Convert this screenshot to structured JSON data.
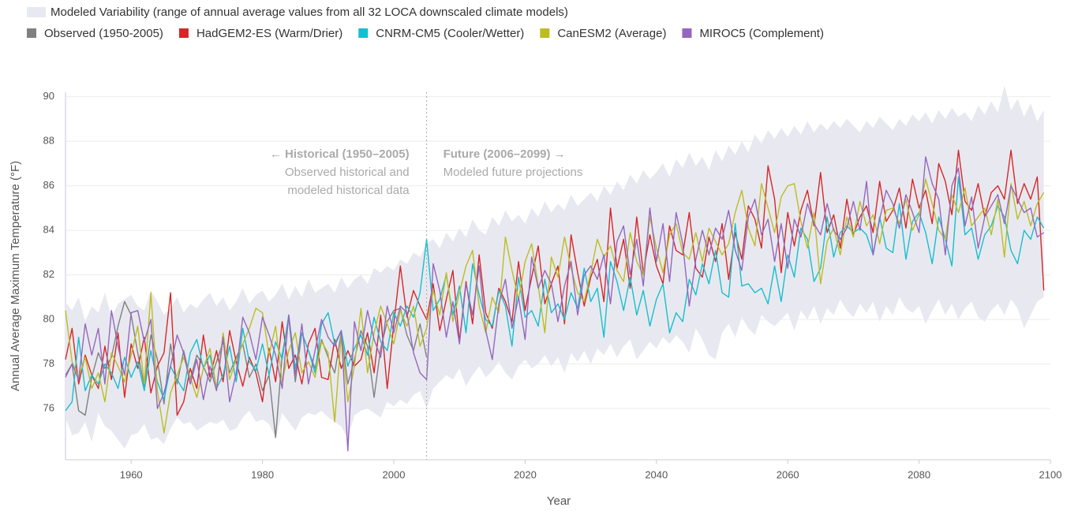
{
  "chart_data": {
    "type": "line",
    "band": {
      "name": "Modeled Variability (range of annual average values from all 32 LOCA downscaled climate models)",
      "color": "#e8e9f0",
      "low": [
        75.6,
        74.8,
        74.9,
        75.4,
        74.5,
        75.8,
        75.2,
        75.0,
        74.6,
        74.2,
        74.8,
        74.9,
        75.3,
        74.6,
        74.7,
        74.4,
        75.1,
        75.6,
        75.3,
        75.4,
        75.0,
        75.2,
        75.4,
        75.3,
        75.5,
        75.0,
        75.1,
        75.6,
        75.9,
        75.4,
        75.5,
        75.3,
        74.7,
        75.8,
        75.4,
        75.0,
        75.6,
        75.8,
        75.7,
        75.9,
        75.6,
        75.4,
        75.2,
        74.6,
        75.7,
        75.9,
        76.0,
        75.8,
        75.6,
        76.3,
        76.1,
        76.4,
        76.2,
        76.6,
        76.8,
        76.0,
        76.9,
        77.2,
        77.5,
        77.3,
        77.8,
        77.0,
        77.5,
        77.9,
        77.4,
        77.7,
        78.1,
        77.6,
        77.3,
        77.9,
        78.2,
        77.8,
        78.0,
        78.4,
        77.9,
        78.3,
        77.6,
        78.5,
        78.1,
        78.6,
        78.0,
        78.7,
        78.4,
        78.9,
        78.3,
        78.8,
        79.1,
        78.2,
        78.6,
        79.0,
        78.7,
        79.2,
        78.9,
        79.3,
        79.0,
        78.5,
        79.6,
        79.1,
        78.4,
        78.2,
        79.4,
        79.8,
        79.2,
        80.1,
        79.6,
        79.3,
        80.2,
        79.9,
        79.7,
        80.0,
        80.3,
        79.5,
        80.4,
        80.0,
        80.6,
        79.8,
        80.5,
        80.2,
        80.9,
        80.4,
        80.1,
        80.7,
        80.3,
        80.8,
        79.9,
        80.6,
        80.2,
        81.0,
        80.5,
        80.3,
        80.6,
        79.8,
        80.4,
        80.9,
        80.2,
        80.7,
        80.0,
        80.5,
        80.8,
        80.1,
        79.9,
        80.4,
        80.7,
        80.2,
        80.9,
        80.5,
        79.6,
        80.2,
        80.8,
        81.0
      ],
      "high": [
        80.8,
        80.4,
        81.0,
        79.9,
        80.6,
        80.3,
        81.2,
        80.1,
        80.7,
        80.9,
        81.1,
        80.6,
        80.4,
        81.3,
        80.8,
        80.2,
        80.5,
        81.0,
        80.3,
        80.7,
        80.5,
        80.9,
        81.2,
        80.6,
        81.0,
        80.4,
        80.8,
        81.4,
        80.7,
        81.1,
        81.3,
        80.8,
        81.1,
        81.6,
        80.9,
        81.5,
        81.0,
        81.8,
        81.2,
        81.4,
        81.6,
        81.2,
        81.9,
        81.4,
        81.8,
        82.0,
        81.6,
        82.3,
        82.1,
        82.4,
        82.2,
        82.7,
        82.5,
        83.0,
        82.8,
        83.4,
        83.6,
        83.2,
        83.9,
        83.5,
        84.1,
        83.7,
        84.5,
        84.0,
        83.8,
        84.6,
        84.2,
        84.9,
        84.4,
        84.7,
        84.3,
        85.0,
        84.6,
        85.3,
        84.8,
        85.2,
        84.9,
        85.6,
        85.1,
        85.4,
        85.7,
        85.3,
        86.0,
        85.6,
        86.2,
        85.8,
        86.5,
        86.1,
        86.7,
        86.3,
        86.6,
        87.0,
        86.4,
        87.2,
        86.8,
        87.5,
        86.9,
        87.3,
        86.7,
        87.6,
        87.1,
        87.8,
        87.4,
        88.0,
        87.5,
        88.3,
        87.9,
        88.5,
        88.1,
        88.6,
        88.2,
        88.7,
        88.3,
        88.9,
        88.4,
        88.8,
        88.5,
        88.9,
        88.6,
        89.0,
        88.7,
        88.4,
        88.9,
        88.6,
        89.1,
        88.8,
        88.5,
        89.0,
        88.7,
        89.2,
        88.9,
        89.3,
        88.8,
        89.4,
        89.0,
        89.5,
        89.1,
        89.3,
        88.9,
        89.6,
        89.2,
        89.8,
        89.3,
        90.5,
        89.4,
        89.9,
        89.1,
        89.7,
        88.9,
        89.4
      ]
    },
    "annotations": {
      "historical": [
        "← Historical (1950–2005)",
        "Observed historical and",
        "modeled historical data"
      ],
      "future": [
        "Future (2006–2099) →",
        "Modeled future projections"
      ],
      "divider": 2005
    },
    "x": [
      1950,
      1951,
      1952,
      1953,
      1954,
      1955,
      1956,
      1957,
      1958,
      1959,
      1960,
      1961,
      1962,
      1963,
      1964,
      1965,
      1966,
      1967,
      1968,
      1969,
      1970,
      1971,
      1972,
      1973,
      1974,
      1975,
      1976,
      1977,
      1978,
      1979,
      1980,
      1981,
      1982,
      1983,
      1984,
      1985,
      1986,
      1987,
      1988,
      1989,
      1990,
      1991,
      1992,
      1993,
      1994,
      1995,
      1996,
      1997,
      1998,
      1999,
      2000,
      2001,
      2002,
      2003,
      2004,
      2005,
      2006,
      2007,
      2008,
      2009,
      2010,
      2011,
      2012,
      2013,
      2014,
      2015,
      2016,
      2017,
      2018,
      2019,
      2020,
      2021,
      2022,
      2023,
      2024,
      2025,
      2026,
      2027,
      2028,
      2029,
      2030,
      2031,
      2032,
      2033,
      2034,
      2035,
      2036,
      2037,
      2038,
      2039,
      2040,
      2041,
      2042,
      2043,
      2044,
      2045,
      2046,
      2047,
      2048,
      2049,
      2050,
      2051,
      2052,
      2053,
      2054,
      2055,
      2056,
      2057,
      2058,
      2059,
      2060,
      2061,
      2062,
      2063,
      2064,
      2065,
      2066,
      2067,
      2068,
      2069,
      2070,
      2071,
      2072,
      2073,
      2074,
      2075,
      2076,
      2077,
      2078,
      2079,
      2080,
      2081,
      2082,
      2083,
      2084,
      2085,
      2086,
      2087,
      2088,
      2089,
      2090,
      2091,
      2092,
      2093,
      2094,
      2095,
      2096,
      2097,
      2098,
      2099
    ],
    "series": [
      {
        "name": "Observed (1950-2005)",
        "color": "#808080",
        "values": [
          77.5,
          78.0,
          75.9,
          75.7,
          77.4,
          78.5,
          77.8,
          78.3,
          79.7,
          80.8,
          80.2,
          78.5,
          77.0,
          79.3,
          78.2,
          76.2,
          78.9,
          77.1,
          78.6,
          77.3,
          78.4,
          77.9,
          77.2,
          78.1,
          79.0,
          77.6,
          78.3,
          78.9,
          77.4,
          78.0,
          76.8,
          77.5,
          74.7,
          78.4,
          80.1,
          77.2,
          79.4,
          78.6,
          77.8,
          79.1,
          78.3,
          77.6,
          79.4,
          77.1,
          78.2,
          79.5,
          78.8,
          76.5,
          78.7,
          79.9,
          80.4,
          80.5,
          79.3,
          78.6,
          79.8,
          78.3,
          null,
          null,
          null,
          null,
          null,
          null,
          null,
          null,
          null,
          null,
          null,
          null,
          null,
          null,
          null,
          null,
          null,
          null,
          null,
          null,
          null,
          null,
          null,
          null,
          null,
          null,
          null,
          null,
          null,
          null,
          null,
          null,
          null,
          null,
          null,
          null,
          null,
          null,
          null,
          null,
          null,
          null,
          null,
          null,
          null,
          null,
          null,
          null,
          null,
          null,
          null,
          null,
          null,
          null,
          null,
          null,
          null,
          null,
          null,
          null,
          null,
          null,
          null,
          null,
          null,
          null,
          null,
          null,
          null,
          null,
          null,
          null,
          null,
          null,
          null,
          null,
          null,
          null,
          null,
          null,
          null,
          null,
          null,
          null,
          null,
          null,
          null,
          null,
          null,
          null,
          null,
          null,
          null,
          null
        ]
      },
      {
        "name": "HadGEM2-ES (Warm/Drier)",
        "color": "#d62728",
        "values": [
          78.2,
          79.6,
          77.1,
          78.4,
          77.5,
          76.9,
          78.8,
          77.3,
          79.4,
          76.5,
          78.9,
          77.8,
          79.2,
          76.7,
          77.9,
          78.5,
          81.2,
          75.7,
          76.3,
          77.8,
          76.9,
          79.3,
          77.4,
          78.6,
          77.2,
          79.5,
          78.1,
          77.0,
          78.3,
          77.6,
          76.3,
          78.7,
          77.2,
          79.9,
          77.8,
          78.4,
          77.1,
          78.9,
          79.6,
          77.4,
          77.3,
          79.1,
          77.8,
          78.6,
          77.9,
          78.2,
          79.4,
          77.6,
          80.2,
          76.9,
          79.8,
          82.4,
          80.1,
          81.3,
          80.6,
          80.0,
          81.6,
          79.5,
          80.9,
          82.2,
          79.0,
          81.7,
          79.8,
          82.9,
          80.3,
          79.6,
          81.4,
          80.8,
          79.9,
          82.6,
          80.4,
          81.9,
          83.3,
          80.7,
          81.6,
          82.4,
          79.8,
          83.8,
          82.1,
          80.6,
          81.9,
          82.7,
          80.8,
          85.0,
          82.3,
          83.6,
          81.4,
          84.6,
          82.1,
          83.8,
          82.4,
          81.6,
          84.2,
          83.1,
          82.9,
          84.8,
          82.3,
          81.9,
          83.7,
          82.6,
          84.3,
          81.8,
          83.9,
          82.7,
          85.1,
          84.5,
          83.2,
          86.9,
          85.4,
          82.1,
          84.8,
          83.3,
          84.9,
          85.8,
          84.2,
          86.6,
          83.9,
          84.7,
          83.2,
          85.4,
          83.8,
          84.6,
          85.1,
          83.9,
          86.2,
          84.4,
          84.9,
          85.9,
          84.1,
          86.3,
          85.0,
          85.8,
          84.3,
          87.0,
          86.2,
          84.7,
          87.6,
          85.3,
          84.9,
          86.1,
          84.6,
          85.7,
          86.0,
          85.4,
          87.6,
          85.2,
          86.1,
          85.4,
          86.4,
          81.3
        ]
      },
      {
        "name": "CNRM-CM5 (Cooler/Wetter)",
        "color": "#17becf",
        "values": [
          75.9,
          76.3,
          79.2,
          76.8,
          77.5,
          77.1,
          78.0,
          77.6,
          76.9,
          78.3,
          77.4,
          78.1,
          76.8,
          78.6,
          77.2,
          76.4,
          77.9,
          77.3,
          76.8,
          78.5,
          79.1,
          77.8,
          78.4,
          76.9,
          77.5,
          78.8,
          77.2,
          79.6,
          78.1,
          77.7,
          78.9,
          77.5,
          79.0,
          78.2,
          80.2,
          77.8,
          79.4,
          78.6,
          77.6,
          79.8,
          80.3,
          78.9,
          79.5,
          77.9,
          78.7,
          79.3,
          78.4,
          80.1,
          79.0,
          78.6,
          80.3,
          79.7,
          80.6,
          80.1,
          81.2,
          83.6,
          80.4,
          80.9,
          82.0,
          80.2,
          81.5,
          79.4,
          82.5,
          81.1,
          80.0,
          79.7,
          81.3,
          80.6,
          78.8,
          81.9,
          80.1,
          80.4,
          79.7,
          81.8,
          80.3,
          80.7,
          80.0,
          81.2,
          80.5,
          82.3,
          80.8,
          81.4,
          79.2,
          82.6,
          81.7,
          80.4,
          81.9,
          80.2,
          81.3,
          79.7,
          80.9,
          81.6,
          79.4,
          80.3,
          79.9,
          81.8,
          81.1,
          82.5,
          81.6,
          83.1,
          81.2,
          81.0,
          84.3,
          81.5,
          81.6,
          81.2,
          81.4,
          80.7,
          82.4,
          80.8,
          82.9,
          81.9,
          84.1,
          83.6,
          81.7,
          82.3,
          84.6,
          82.8,
          83.9,
          84.2,
          83.9,
          84.1,
          83.8,
          82.9,
          84.6,
          83.2,
          83.0,
          85.2,
          82.7,
          84.4,
          84.8,
          83.9,
          82.5,
          84.6,
          83.6,
          82.4,
          86.4,
          83.8,
          84.1,
          82.7,
          83.8,
          84.2,
          85.1,
          84.6,
          83.1,
          82.5,
          84.0,
          83.6,
          84.6,
          84.1
        ]
      },
      {
        "name": "CanESM2 (Average)",
        "color": "#bcbd22",
        "values": [
          80.4,
          78.1,
          77.4,
          78.3,
          76.9,
          77.6,
          76.3,
          78.5,
          77.9,
          77.2,
          78.4,
          79.7,
          77.1,
          81.2,
          76.8,
          74.9,
          76.7,
          77.5,
          78.3,
          77.4,
          76.5,
          77.8,
          78.7,
          76.9,
          79.4,
          77.3,
          78.2,
          78.9,
          79.6,
          80.5,
          80.3,
          78.4,
          79.7,
          77.2,
          78.6,
          79.4,
          77.6,
          78.1,
          77.4,
          79.0,
          78.5,
          75.4,
          79.3,
          76.3,
          77.9,
          80.5,
          77.6,
          79.4,
          80.6,
          79.8,
          78.9,
          80.4,
          79.7,
          80.6,
          78.8,
          79.6,
          81.3,
          80.2,
          82.1,
          79.9,
          81.2,
          82.4,
          83.1,
          80.6,
          79.4,
          81.0,
          80.3,
          83.7,
          82.2,
          80.9,
          82.6,
          83.4,
          81.5,
          79.4,
          82.8,
          81.9,
          83.7,
          82.3,
          81.2,
          80.8,
          82.1,
          83.6,
          82.8,
          83.3,
          82.2,
          81.7,
          83.9,
          82.6,
          82.0,
          84.6,
          83.2,
          82.1,
          83.8,
          84.3,
          83.0,
          82.7,
          83.9,
          82.6,
          84.1,
          83.5,
          82.9,
          83.4,
          84.8,
          85.8,
          84.1,
          83.3,
          86.1,
          85.0,
          83.9,
          85.5,
          86.0,
          86.1,
          84.4,
          83.2,
          84.8,
          81.6,
          83.5,
          84.1,
          82.9,
          84.6,
          83.7,
          85.3,
          84.2,
          84.7,
          83.4,
          84.9,
          85.0,
          84.3,
          85.4,
          84.0,
          84.7,
          86.3,
          85.2,
          84.0,
          83.6,
          85.6,
          84.8,
          85.9,
          84.2,
          84.6,
          85.0,
          83.8,
          85.4,
          82.8,
          86.1,
          84.5,
          85.3,
          84.2,
          85.2,
          85.7
        ]
      },
      {
        "name": "MIROC5 (Complement)",
        "color": "#9467bd",
        "values": [
          77.4,
          78.0,
          77.3,
          79.8,
          78.4,
          79.6,
          77.1,
          80.4,
          78.8,
          77.5,
          80.3,
          80.4,
          79.0,
          80.0,
          76.0,
          76.7,
          77.9,
          79.3,
          78.5,
          77.1,
          78.2,
          76.4,
          77.9,
          76.8,
          79.2,
          76.3,
          77.6,
          80.1,
          79.4,
          78.2,
          80.1,
          79.3,
          78.4,
          76.9,
          80.2,
          77.5,
          79.8,
          77.1,
          78.6,
          80.0,
          79.2,
          78.8,
          79.5,
          74.1,
          79.9,
          78.6,
          80.4,
          79.1,
          78.3,
          80.6,
          79.4,
          80.6,
          80.3,
          78.5,
          77.6,
          77.3,
          82.5,
          81.3,
          79.2,
          80.8,
          78.9,
          81.6,
          80.2,
          82.4,
          79.5,
          78.2,
          80.7,
          81.8,
          79.6,
          81.0,
          79.1,
          82.8,
          81.4,
          82.2,
          81.6,
          79.9,
          81.5,
          82.6,
          80.2,
          82.0,
          82.4,
          81.8,
          82.9,
          80.7,
          83.5,
          84.2,
          82.0,
          83.6,
          81.5,
          85.0,
          82.6,
          84.3,
          81.7,
          84.8,
          83.4,
          80.6,
          82.7,
          84.0,
          82.9,
          84.1,
          83.6,
          84.9,
          83.1,
          82.2,
          84.6,
          85.4,
          83.8,
          84.5,
          82.6,
          84.3,
          82.3,
          84.5,
          83.7,
          85.2,
          84.3,
          83.8,
          85.2,
          84.0,
          83.6,
          84.1,
          85.3,
          84.0,
          86.2,
          82.9,
          84.5,
          85.8,
          85.2,
          84.1,
          85.6,
          84.8,
          83.9,
          87.3,
          86.1,
          85.4,
          82.9,
          86.0,
          86.8,
          84.2,
          85.5,
          83.2,
          84.6,
          85.1,
          85.6,
          84.3,
          86.0,
          85.4,
          84.8,
          85.0,
          83.7,
          83.9
        ]
      }
    ],
    "xlabel": "Year",
    "ylabel": "Annual Average Maximum Temperature (°F)",
    "xlim": [
      1950,
      2100
    ],
    "xticks": [
      1960,
      1980,
      2000,
      2020,
      2040,
      2060,
      2080,
      2100
    ],
    "ylim": [
      73.7,
      90.2
    ],
    "yticks": [
      76,
      78,
      80,
      82,
      84,
      86,
      88,
      90
    ],
    "grid": true
  }
}
